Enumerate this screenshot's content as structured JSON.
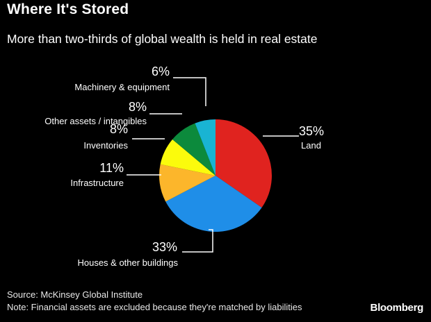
{
  "header": {
    "title": "Where It's Stored",
    "subtitle": "More than two-thirds of global wealth is held in real estate"
  },
  "chart_data": {
    "type": "pie",
    "title": "Where It's Stored",
    "subtitle": "More than two-thirds of global wealth is held in real estate",
    "start": "12 o'clock, clockwise",
    "slices": [
      {
        "label": "Land",
        "value": 35,
        "value_label": "35%",
        "color": "#e0231f"
      },
      {
        "label": "Houses & other buildings",
        "value": 33,
        "value_label": "33%",
        "color": "#1f8ee8"
      },
      {
        "label": "Infrastructure",
        "value": 11,
        "value_label": "11%",
        "color": "#fcb62b"
      },
      {
        "label": "Inventories",
        "value": 8,
        "value_label": "8%",
        "color": "#fbfb0c"
      },
      {
        "label": "Other assets / intangibles",
        "value": 8,
        "value_label": "8%",
        "color": "#0c8a3c"
      },
      {
        "label": "Machinery & equipment",
        "value": 6,
        "value_label": "6%",
        "color": "#19b4d3"
      }
    ]
  },
  "footer": {
    "source": "Source: McKinsey Global Institute",
    "note": "Note: Financial assets are excluded because they're matched by liabilities",
    "brand": "Bloomberg"
  }
}
